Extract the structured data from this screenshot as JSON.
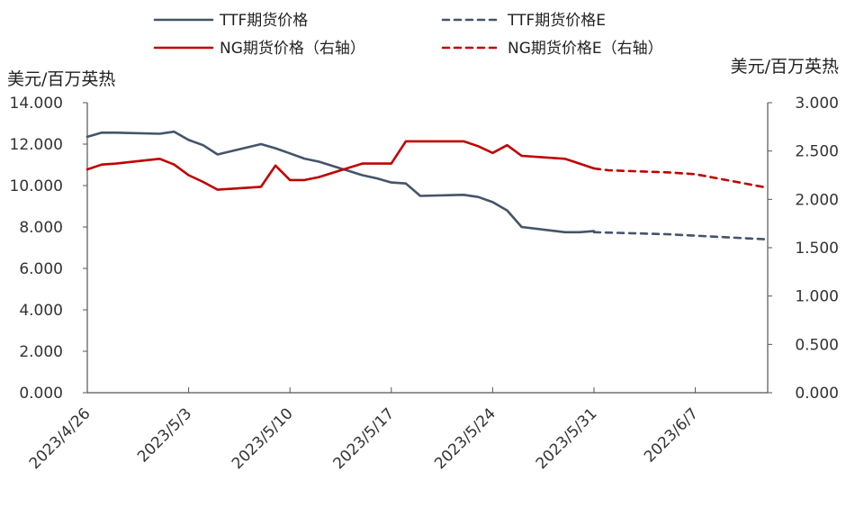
{
  "chart_data": {
    "type": "line",
    "title": "",
    "y_left_label": "美元/百万英热",
    "y_right_label": "美元/百万英热",
    "ylim_left": [
      0,
      14
    ],
    "ylim_right": [
      0,
      3
    ],
    "y_left_ticks": [
      "0.000",
      "2.000",
      "4.000",
      "6.000",
      "8.000",
      "10.000",
      "12.000",
      "14.000"
    ],
    "y_right_ticks": [
      "0.000",
      "0.500",
      "1.000",
      "1.500",
      "2.000",
      "2.500",
      "3.000"
    ],
    "x_tick_labels": [
      "2023/4/26",
      "2023/5/3",
      "2023/5/10",
      "2023/5/17",
      "2023/5/24",
      "2023/5/31",
      "2023/6/7"
    ],
    "x_range": [
      "2023-04-26",
      "2023-06-12"
    ],
    "legend_position": "top",
    "grid": false,
    "series": [
      {
        "name": "TTF期货价格",
        "axis": "left",
        "color": "#44546a",
        "dash": false,
        "points": [
          [
            "2023-04-26",
            12.35
          ],
          [
            "2023-04-27",
            12.55
          ],
          [
            "2023-04-28",
            12.55
          ],
          [
            "2023-05-01",
            12.5
          ],
          [
            "2023-05-02",
            12.6
          ],
          [
            "2023-05-03",
            12.2
          ],
          [
            "2023-05-04",
            11.95
          ],
          [
            "2023-05-05",
            11.5
          ],
          [
            "2023-05-08",
            12.0
          ],
          [
            "2023-05-09",
            11.8
          ],
          [
            "2023-05-10",
            11.55
          ],
          [
            "2023-05-11",
            11.3
          ],
          [
            "2023-05-12",
            11.15
          ],
          [
            "2023-05-15",
            10.5
          ],
          [
            "2023-05-16",
            10.35
          ],
          [
            "2023-05-17",
            10.15
          ],
          [
            "2023-05-18",
            10.1
          ],
          [
            "2023-05-19",
            9.5
          ],
          [
            "2023-05-22",
            9.55
          ],
          [
            "2023-05-23",
            9.45
          ],
          [
            "2023-05-24",
            9.2
          ],
          [
            "2023-05-25",
            8.8
          ],
          [
            "2023-05-26",
            8.0
          ],
          [
            "2023-05-29",
            7.75
          ],
          [
            "2023-05-30",
            7.75
          ],
          [
            "2023-05-31",
            7.8
          ]
        ]
      },
      {
        "name": "TTF期货价格E",
        "axis": "left",
        "color": "#44546a",
        "dash": true,
        "points": [
          [
            "2023-05-31",
            7.75
          ],
          [
            "2023-06-05",
            7.65
          ],
          [
            "2023-06-12",
            7.4
          ]
        ]
      },
      {
        "name": "NG期货价格（右轴）",
        "axis": "right",
        "color": "#c00000",
        "dash": false,
        "points": [
          [
            "2023-04-26",
            2.31
          ],
          [
            "2023-04-27",
            2.36
          ],
          [
            "2023-04-28",
            2.37
          ],
          [
            "2023-05-01",
            2.42
          ],
          [
            "2023-05-02",
            2.36
          ],
          [
            "2023-05-03",
            2.25
          ],
          [
            "2023-05-04",
            2.18
          ],
          [
            "2023-05-05",
            2.1
          ],
          [
            "2023-05-08",
            2.13
          ],
          [
            "2023-05-09",
            2.35
          ],
          [
            "2023-05-10",
            2.2
          ],
          [
            "2023-05-11",
            2.2
          ],
          [
            "2023-05-12",
            2.23
          ],
          [
            "2023-05-15",
            2.37
          ],
          [
            "2023-05-16",
            2.37
          ],
          [
            "2023-05-17",
            2.37
          ],
          [
            "2023-05-18",
            2.6
          ],
          [
            "2023-05-19",
            2.6
          ],
          [
            "2023-05-22",
            2.6
          ],
          [
            "2023-05-23",
            2.55
          ],
          [
            "2023-05-24",
            2.48
          ],
          [
            "2023-05-25",
            2.56
          ],
          [
            "2023-05-26",
            2.45
          ],
          [
            "2023-05-29",
            2.42
          ],
          [
            "2023-05-30",
            2.37
          ],
          [
            "2023-05-31",
            2.32
          ]
        ]
      },
      {
        "name": "NG期货价格E（右轴）",
        "axis": "right",
        "color": "#c00000",
        "dash": true,
        "points": [
          [
            "2023-05-31",
            2.32
          ],
          [
            "2023-06-01",
            2.3
          ],
          [
            "2023-06-05",
            2.28
          ],
          [
            "2023-06-07",
            2.26
          ],
          [
            "2023-06-12",
            2.12
          ]
        ]
      }
    ]
  }
}
